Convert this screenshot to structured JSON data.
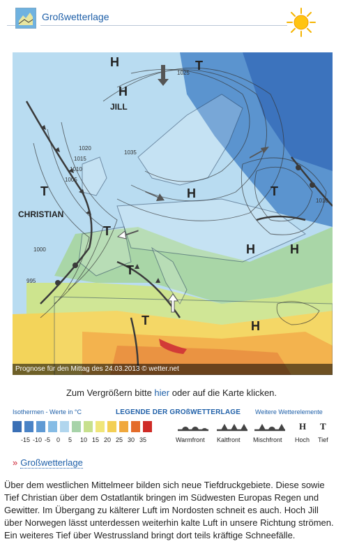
{
  "header": {
    "title": "Großwetterlage",
    "icon": "map-icon",
    "sun_icon": "sun-icon"
  },
  "map": {
    "caption": "Prognose für den Mittag des 24.03.2013 © wetter.net",
    "labels": {
      "jill": "JILL",
      "christian": "CHRISTIAN",
      "h": "H",
      "t": "T",
      "iso_1025": "1025",
      "iso_1020": "1020",
      "iso_1015": "1015",
      "iso_1010": "1010",
      "iso_1005": "1005",
      "iso_1000": "1000",
      "iso_995": "995",
      "iso_1035": "1035"
    }
  },
  "zoom": {
    "before": "Zum Vergrößern bitte ",
    "link": "hier",
    "after": " oder auf die Karte klicken."
  },
  "legend": {
    "isotherm_heading": "Isothermen - Werte in °C",
    "title": "LEGENDE DER GROßWETTERLAGE",
    "other_heading": "Weitere Wetterelemente",
    "swatch_colors": [
      "#3a6fb5",
      "#4a83c6",
      "#5f9ad4",
      "#86bce5",
      "#b1d6ee",
      "#a7d3a9",
      "#c7e08d",
      "#f0e67a",
      "#f3cf55",
      "#f0a83d",
      "#e46c2a",
      "#cf2b26"
    ],
    "ticks": [
      "-15",
      "-10",
      "-5",
      "0",
      "5",
      "10",
      "15",
      "20",
      "25",
      "30",
      "35"
    ],
    "fronts": [
      "Warmfront",
      "Kaltfront",
      "Mischfront",
      "Hoch",
      "Tief"
    ],
    "hoch_symbol": "H",
    "tief_symbol": "T"
  },
  "link": {
    "label": "Großwetterlage"
  },
  "paragraph": "Über dem westlichen Mittelmeer bilden sich neue Tiefdruckgebiete. Diese sowie Tief Christian über dem Ostatlantik bringen im Südwesten Europas Regen und Gewitter. Im Übergang zu kälterer Luft im Nordosten schneit es auch. Hoch Jill über Norwegen lässt unterdessen weiterhin kalte Luft in unsere Richtung strömen. Ein weiteres Tief über Westrussland bringt dort teils kräftige Schneefälle."
}
